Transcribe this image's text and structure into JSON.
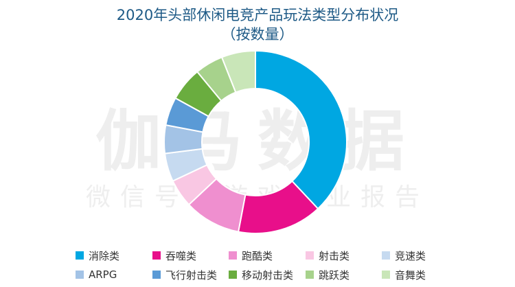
{
  "chart_data": {
    "type": "pie",
    "donut": true,
    "title_line1": "2020年头部休闲电竞产品玩法类型分布状况",
    "title_line2": "（按数量）",
    "legend_position": "bottom",
    "categories": [
      "消除类",
      "吞噬类",
      "跑酷类",
      "射击类",
      "竞速类",
      "ARPG",
      "飞行射击类",
      "移动射击类",
      "跳跃类",
      "音舞类"
    ],
    "values": [
      38,
      15,
      10,
      5,
      5,
      5,
      5,
      6,
      5,
      6
    ],
    "colors": [
      "#00a7e2",
      "#e80f8a",
      "#ef8fcf",
      "#f9c7e3",
      "#c6daf0",
      "#a3c3e6",
      "#5a9ad6",
      "#6aad3f",
      "#a7d28c",
      "#c9e6b8"
    ]
  },
  "watermark": {
    "main": "伽马数据",
    "sub": "微信号：游戏产业报告"
  }
}
